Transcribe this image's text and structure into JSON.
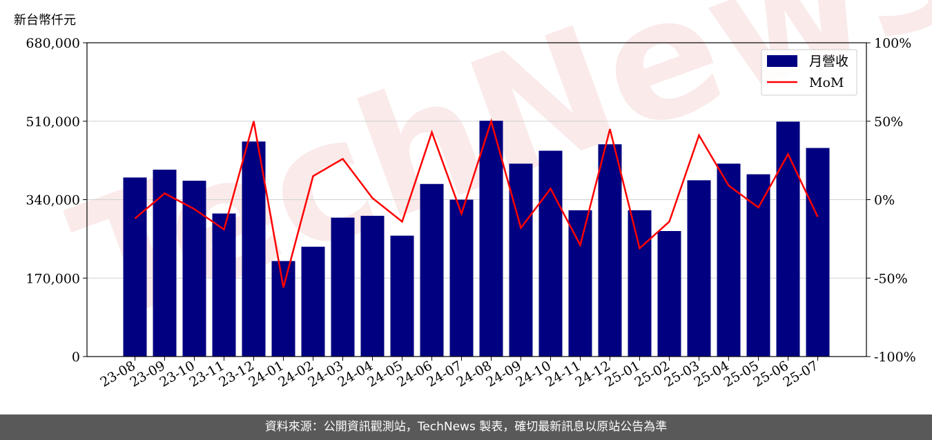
{
  "chart_data": {
    "type": "bar",
    "unit_label": "新台幣仟元",
    "categories": [
      "23-08",
      "23-09",
      "23-10",
      "23-11",
      "23-12",
      "24-01",
      "24-02",
      "24-03",
      "24-04",
      "24-05",
      "24-06",
      "24-07",
      "24-08",
      "24-09",
      "24-10",
      "24-11",
      "24-12",
      "25-01",
      "25-02",
      "25-03",
      "25-04",
      "25-05",
      "25-06",
      "25-07"
    ],
    "series": [
      {
        "name": "月營收",
        "type": "bar",
        "axis": "left",
        "color": "#000080",
        "values": [
          388000,
          405000,
          381000,
          310000,
          466000,
          207000,
          238000,
          301000,
          305000,
          262000,
          374000,
          340000,
          511000,
          418000,
          446000,
          317000,
          460000,
          317000,
          272000,
          382000,
          418000,
          395000,
          509000,
          452000
        ]
      },
      {
        "name": "MoM",
        "type": "line",
        "axis": "right",
        "color": "#ff0000",
        "values": [
          -12,
          4,
          -6,
          -19,
          50,
          -56,
          15,
          26,
          1,
          -14,
          43,
          -9,
          50,
          -18,
          7,
          -29,
          45,
          -31,
          -14,
          41,
          9,
          -5,
          29,
          -11
        ]
      }
    ],
    "ylim_left": [
      0,
      680000
    ],
    "yticks_left": [
      "0",
      "170,000",
      "340,000",
      "510,000",
      "680,000"
    ],
    "ylim_right": [
      -100,
      100
    ],
    "yticks_right": [
      "-100%",
      "-50%",
      "0%",
      "50%",
      "100%"
    ],
    "grid": "horizontal",
    "legend": "top-right",
    "watermark": "TechNews"
  },
  "footer": {
    "source_text": "資料來源：公開資訊觀測站，TechNews 製表，確切最新訊息以原站公告為準"
  }
}
